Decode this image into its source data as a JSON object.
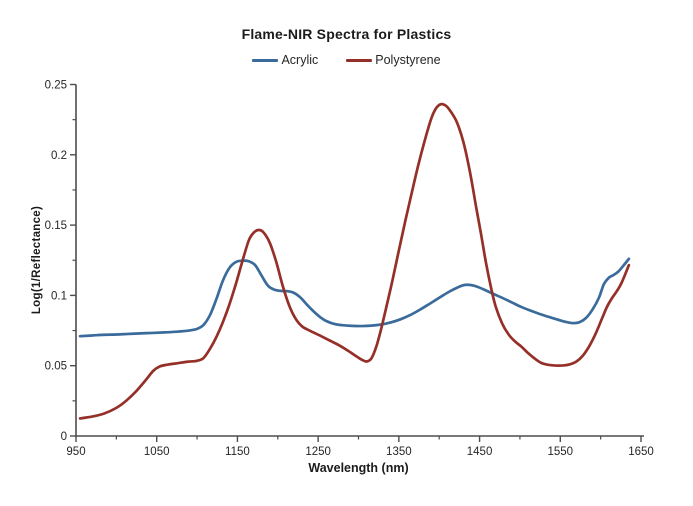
{
  "chart_data": {
    "type": "line",
    "title": "Flame-NIR Spectra for Plastics",
    "xlabel": "Wavelength (nm)",
    "ylabel": "Log(1/Reflectance)",
    "xlim": [
      950,
      1650
    ],
    "ylim": [
      0,
      0.25
    ],
    "grid": false,
    "legend_position": "top-center",
    "axis_color": "#4d4d4d",
    "tick_text_color": "#262626",
    "x_major_ticks": [
      950,
      1050,
      1150,
      1250,
      1350,
      1450,
      1550,
      1650
    ],
    "x_tick_labels": [
      "950",
      "1050",
      "1150",
      "1250",
      "1350",
      "1450",
      "1550",
      "1650"
    ],
    "x_minor_step": 50,
    "y_major_ticks": [
      0,
      0.05,
      0.1,
      0.15,
      0.2,
      0.25
    ],
    "y_tick_labels": [
      "0",
      "0.05",
      "0.1",
      "0.15",
      "0.2",
      "0.25"
    ],
    "y_minor_step": 0.025,
    "series": [
      {
        "name": "Acrylic",
        "color": "#3A6B9A",
        "x": [
          955,
          970,
          985,
          1000,
          1015,
          1030,
          1045,
          1060,
          1075,
          1090,
          1100,
          1108,
          1116,
          1124,
          1132,
          1140,
          1148,
          1156,
          1164,
          1172,
          1180,
          1188,
          1196,
          1204,
          1212,
          1220,
          1228,
          1236,
          1244,
          1252,
          1260,
          1270,
          1280,
          1292,
          1304,
          1316,
          1328,
          1340,
          1352,
          1364,
          1376,
          1388,
          1400,
          1412,
          1424,
          1432,
          1440,
          1448,
          1458,
          1468,
          1478,
          1490,
          1502,
          1514,
          1526,
          1538,
          1550,
          1558,
          1566,
          1574,
          1582,
          1590,
          1598,
          1604,
          1610,
          1616,
          1622,
          1628,
          1635
        ],
        "y": [
          0.071,
          0.0715,
          0.072,
          0.0722,
          0.0726,
          0.073,
          0.0733,
          0.0737,
          0.0742,
          0.075,
          0.0762,
          0.079,
          0.086,
          0.0975,
          0.1105,
          0.1195,
          0.1237,
          0.1247,
          0.1243,
          0.1215,
          0.114,
          0.1068,
          0.104,
          0.1032,
          0.103,
          0.1018,
          0.0985,
          0.0935,
          0.0888,
          0.0848,
          0.0818,
          0.0797,
          0.0788,
          0.0783,
          0.0782,
          0.0785,
          0.0793,
          0.0808,
          0.083,
          0.086,
          0.0898,
          0.094,
          0.0983,
          0.1025,
          0.106,
          0.1075,
          0.1073,
          0.106,
          0.1035,
          0.1008,
          0.0983,
          0.095,
          0.0917,
          0.089,
          0.0865,
          0.0843,
          0.0822,
          0.081,
          0.0803,
          0.081,
          0.084,
          0.09,
          0.0985,
          0.108,
          0.1125,
          0.1145,
          0.117,
          0.121,
          0.126
        ]
      },
      {
        "name": "Polystyrene",
        "color": "#953028",
        "x": [
          955,
          970,
          985,
          1000,
          1012,
          1024,
          1036,
          1046,
          1054,
          1064,
          1076,
          1088,
          1100,
          1108,
          1116,
          1124,
          1132,
          1140,
          1148,
          1156,
          1164,
          1170,
          1176,
          1182,
          1190,
          1198,
          1206,
          1214,
          1222,
          1230,
          1240,
          1252,
          1264,
          1276,
          1288,
          1296,
          1304,
          1310,
          1316,
          1322,
          1328,
          1334,
          1342,
          1350,
          1358,
          1366,
          1374,
          1382,
          1390,
          1396,
          1402,
          1408,
          1414,
          1422,
          1430,
          1438,
          1446,
          1452,
          1458,
          1464,
          1470,
          1478,
          1486,
          1494,
          1502,
          1510,
          1518,
          1526,
          1534,
          1544,
          1554,
          1562,
          1570,
          1578,
          1586,
          1594,
          1602,
          1608,
          1614,
          1620,
          1626,
          1635
        ],
        "y": [
          0.0125,
          0.0138,
          0.016,
          0.02,
          0.025,
          0.0315,
          0.0395,
          0.0465,
          0.0495,
          0.0508,
          0.0518,
          0.0528,
          0.0535,
          0.0555,
          0.062,
          0.0705,
          0.081,
          0.0935,
          0.108,
          0.124,
          0.139,
          0.1445,
          0.1465,
          0.145,
          0.1375,
          0.124,
          0.107,
          0.093,
          0.0835,
          0.078,
          0.0748,
          0.0715,
          0.068,
          0.0645,
          0.0603,
          0.0572,
          0.0543,
          0.053,
          0.0552,
          0.0635,
          0.076,
          0.0905,
          0.1105,
          0.132,
          0.153,
          0.173,
          0.1925,
          0.21,
          0.2255,
          0.233,
          0.236,
          0.235,
          0.231,
          0.223,
          0.209,
          0.188,
          0.162,
          0.143,
          0.123,
          0.106,
          0.092,
          0.08,
          0.0722,
          0.0672,
          0.0635,
          0.059,
          0.0552,
          0.0521,
          0.0507,
          0.0501,
          0.0502,
          0.051,
          0.053,
          0.0572,
          0.064,
          0.073,
          0.084,
          0.092,
          0.098,
          0.103,
          0.109,
          0.1215
        ]
      }
    ]
  }
}
